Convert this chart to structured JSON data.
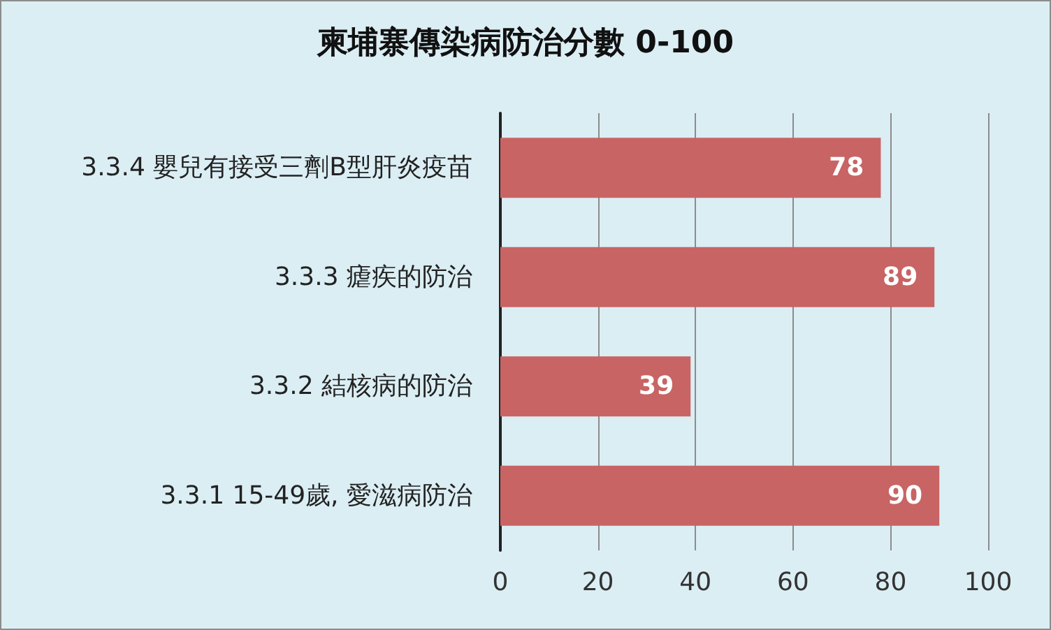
{
  "chart_data": {
    "type": "bar",
    "orientation": "horizontal",
    "title": "柬埔寨傳染病防治分數 0-100",
    "categories": [
      "3.3.4 嬰兒有接受三劑B型肝炎疫苗",
      "3.3.3 瘧疾的防治",
      "3.3.2 結核病的防治",
      "3.3.1 15-49歲, 愛滋病防治"
    ],
    "values": [
      78,
      89,
      39,
      90
    ],
    "color": "#c86464",
    "xlim": [
      0,
      100
    ],
    "xticks": [
      0,
      20,
      40,
      60,
      80,
      100
    ],
    "grid": "x",
    "data_labels": true
  }
}
